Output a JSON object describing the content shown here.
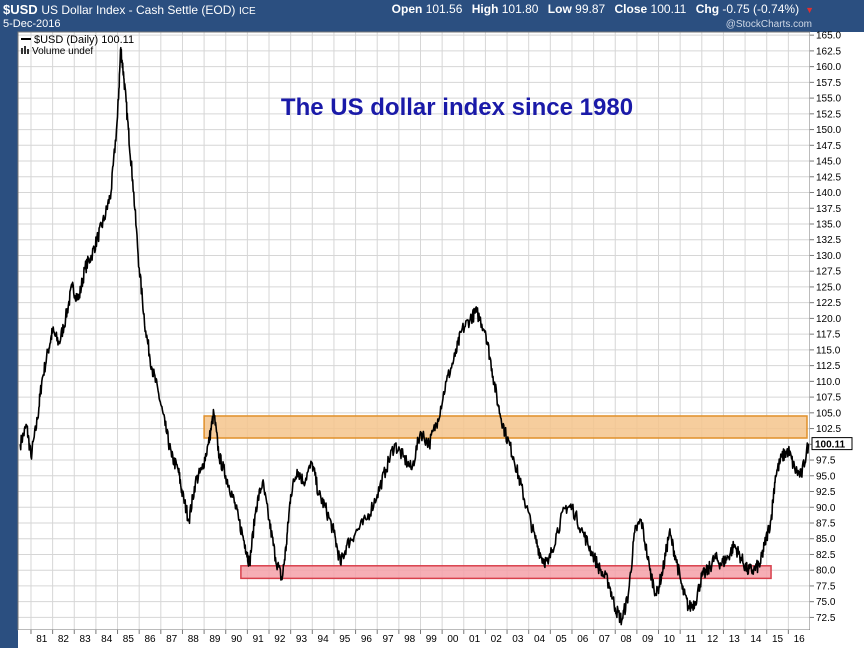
{
  "header": {
    "symbol": "$USD",
    "name": "US Dollar Index - Cash Settle (EOD)",
    "exchange": "ICE",
    "date": "5-Dec-2016",
    "open_label": "Open",
    "open": "101.56",
    "high_label": "High",
    "high": "101.80",
    "low_label": "Low",
    "low": "99.87",
    "close_label": "Close",
    "close": "100.11",
    "chg_label": "Chg",
    "chg": "-0.75 (-0.74%)",
    "brand": "@StockCharts.com"
  },
  "legend": {
    "series": "$USD (Daily) 100.11",
    "volume": "Volume undef"
  },
  "colors": {
    "frame": "#2b4f80",
    "line": "#000000",
    "resistance_band": "#f5c48c",
    "resistance_border": "#e0902a",
    "support_band": "#f4a0a8",
    "support_border": "#d8404c",
    "title": "#1a1aa8"
  },
  "chart_data": {
    "type": "line",
    "title": "The US dollar index since 1980",
    "xlabel": "",
    "ylabel": "",
    "x_tick_labels": [
      "81",
      "82",
      "83",
      "84",
      "85",
      "86",
      "87",
      "88",
      "89",
      "90",
      "91",
      "92",
      "93",
      "94",
      "95",
      "96",
      "97",
      "98",
      "99",
      "00",
      "01",
      "02",
      "03",
      "04",
      "05",
      "06",
      "07",
      "08",
      "09",
      "10",
      "11",
      "12",
      "13",
      "14",
      "15",
      "16"
    ],
    "y_tick_labels": [
      "72.5",
      "75.0",
      "77.5",
      "80.0",
      "82.5",
      "85.0",
      "87.5",
      "90.0",
      "92.5",
      "95.0",
      "97.5",
      "100.0",
      "102.5",
      "105.0",
      "107.5",
      "110.0",
      "112.5",
      "115.0",
      "117.5",
      "120.0",
      "122.5",
      "125.0",
      "127.5",
      "130.0",
      "132.5",
      "135.0",
      "137.5",
      "140.0",
      "142.5",
      "145.0",
      "147.5",
      "150.0",
      "152.5",
      "155.0",
      "157.5",
      "160.0",
      "162.5",
      "165.0"
    ],
    "xlim": [
      1980.4,
      2017.0
    ],
    "ylim": [
      70.5,
      165.5
    ],
    "last_value": "100.11",
    "grid": true,
    "legend_position": "top-left",
    "bands": [
      {
        "name": "resistance",
        "x": [
          1989.0,
          2017.0
        ],
        "y": [
          101.0,
          104.5
        ]
      },
      {
        "name": "support",
        "x": [
          1990.7,
          2015.2
        ],
        "y": [
          78.7,
          80.7
        ]
      }
    ],
    "series": [
      {
        "x": [
          1980.5,
          1980.8,
          1981.0,
          1981.3,
          1981.5,
          1981.8,
          1982.0,
          1982.3,
          1982.6,
          1982.9,
          1983.2,
          1983.5,
          1983.8,
          1984.1,
          1984.4,
          1984.7,
          1985.0,
          1985.15,
          1985.3,
          1985.5,
          1985.7,
          1986.0,
          1986.3,
          1986.6,
          1986.9,
          1987.2,
          1987.5,
          1987.8,
          1988.0,
          1988.3,
          1988.6,
          1988.9,
          1989.2,
          1989.45,
          1989.7,
          1990.0,
          1990.3,
          1990.6,
          1990.9,
          1991.1,
          1991.4,
          1991.7,
          1992.0,
          1992.3,
          1992.6,
          1992.8,
          1993.0,
          1993.3,
          1993.6,
          1994.0,
          1994.3,
          1994.6,
          1995.0,
          1995.3,
          1995.6,
          1996.0,
          1996.5,
          1997.0,
          1997.4,
          1997.8,
          1998.2,
          1998.6,
          1999.0,
          1999.4,
          1999.8,
          2000.2,
          2000.6,
          2000.9,
          2001.3,
          2001.6,
          2002.0,
          2002.3,
          2002.6,
          2002.9,
          2003.3,
          2003.6,
          2003.9,
          2004.3,
          2004.6,
          2004.9,
          2005.3,
          2005.7,
          2006.0,
          2006.5,
          2006.9,
          2007.3,
          2007.7,
          2008.0,
          2008.3,
          2008.6,
          2008.9,
          2009.2,
          2009.6,
          2009.9,
          2010.2,
          2010.5,
          2010.8,
          2011.1,
          2011.4,
          2011.7,
          2012.0,
          2012.3,
          2012.6,
          2012.9,
          2013.2,
          2013.5,
          2013.8,
          2014.1,
          2014.4,
          2014.7,
          2014.9,
          2015.2,
          2015.4,
          2015.7,
          2016.0,
          2016.3,
          2016.6,
          2016.93
        ],
        "y": [
          100.0,
          103.0,
          98.0,
          104.0,
          110.0,
          115.0,
          118.0,
          116.0,
          120.0,
          125.0,
          123.0,
          128.0,
          130.0,
          133.0,
          136.0,
          140.0,
          152.0,
          163.0,
          158.0,
          150.0,
          142.0,
          128.0,
          118.0,
          112.0,
          108.0,
          103.0,
          98.0,
          96.0,
          92.0,
          88.0,
          94.0,
          96.0,
          100.0,
          105.0,
          98.0,
          95.0,
          92.0,
          88.0,
          84.0,
          81.0,
          90.0,
          94.0,
          88.0,
          82.0,
          78.5,
          84.0,
          92.0,
          96.0,
          94.0,
          97.0,
          92.0,
          90.0,
          86.0,
          81.0,
          84.0,
          86.0,
          88.0,
          92.0,
          96.0,
          100.0,
          98.0,
          96.0,
          102.0,
          100.0,
          104.0,
          110.0,
          114.0,
          118.0,
          120.0,
          121.0,
          118.0,
          112.0,
          106.0,
          102.0,
          98.0,
          94.0,
          90.0,
          85.0,
          82.0,
          81.0,
          86.0,
          90.0,
          90.0,
          86.0,
          83.0,
          80.0,
          78.0,
          74.0,
          72.0,
          76.0,
          86.0,
          88.0,
          80.0,
          76.0,
          80.0,
          86.0,
          82.0,
          77.0,
          74.0,
          75.0,
          79.0,
          80.0,
          82.0,
          81.0,
          82.0,
          84.0,
          82.0,
          80.0,
          80.0,
          81.0,
          84.0,
          88.0,
          95.0,
          98.0,
          99.0,
          96.0,
          95.0,
          100.11
        ]
      }
    ]
  }
}
